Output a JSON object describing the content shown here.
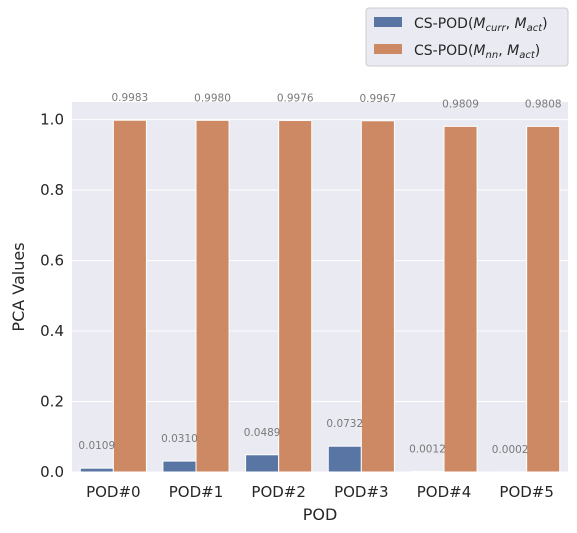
{
  "chart_data": {
    "type": "bar",
    "title": "",
    "xlabel": "POD",
    "ylabel": "PCA Values",
    "categories": [
      "POD#0",
      "POD#1",
      "POD#2",
      "POD#3",
      "POD#4",
      "POD#5"
    ],
    "ylim": [
      0,
      1.05
    ],
    "yticks": [
      "0.0",
      "0.2",
      "0.4",
      "0.6",
      "0.8",
      "1.0"
    ],
    "grid": true,
    "legend_position": "upper-right, outside plot",
    "series": [
      {
        "name": "CS-POD(M_curr, M_act)",
        "legend_parts": {
          "prefix": "CS-POD(",
          "m1": "M",
          "sub1": "curr",
          "sep": ", ",
          "m2": "M",
          "sub2": "act",
          "suffix": ")"
        },
        "color": "#5875a4",
        "values": [
          0.0109,
          0.031,
          0.0489,
          0.0732,
          0.0012,
          0.0002
        ],
        "labels": [
          "0.0109",
          "0.0310",
          "0.0489",
          "0.0732",
          "0.0012",
          "0.0002"
        ]
      },
      {
        "name": "CS-POD(M_nn, M_act)",
        "legend_parts": {
          "prefix": "CS-POD(",
          "m1": "M",
          "sub1": "nn",
          "sep": ", ",
          "m2": "M",
          "sub2": "act",
          "suffix": ")"
        },
        "color": "#cc8963",
        "values": [
          0.9983,
          0.998,
          0.9976,
          0.9967,
          0.9809,
          0.9808
        ],
        "labels": [
          "0.9983",
          "0.9980",
          "0.9976",
          "0.9967",
          "0.9809",
          "0.9808"
        ]
      }
    ],
    "style": {
      "plot_background": "#eaeaf2",
      "grid_color": "#ffffff"
    }
  }
}
